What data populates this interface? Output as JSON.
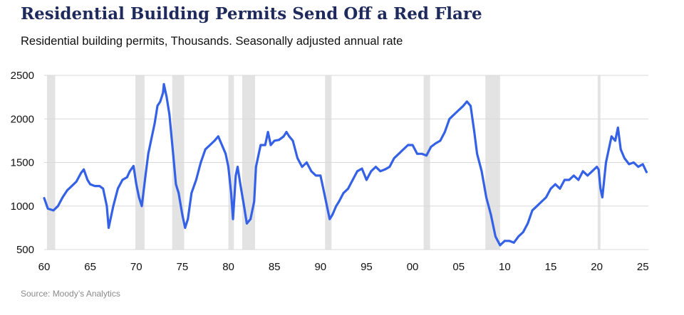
{
  "title": "Residential Building Permits Send Off a Red Flare",
  "subtitle": "Residential building permits, Thousands. Seasonally adjusted annual rate",
  "source": "Source: Moody’s Analytics",
  "colors": {
    "line": "#3461e6",
    "recession": "#e3e3e3",
    "grid": "#d9d9d9",
    "title": "#1f2a5c"
  },
  "chart_data": {
    "type": "line",
    "title": "Residential Building Permits Send Off a Red Flare",
    "xlabel": "",
    "ylabel": "",
    "xlim": [
      1960,
      2025.6
    ],
    "ylim": [
      500,
      2500
    ],
    "grid": true,
    "yticks": [
      500,
      1000,
      1500,
      2000,
      2500
    ],
    "ytick_labels": [
      "500",
      "1000",
      "1500",
      "2000",
      "2500"
    ],
    "xticks": [
      1960,
      1965,
      1970,
      1975,
      1980,
      1985,
      1990,
      1995,
      2000,
      2005,
      2010,
      2015,
      2020,
      2025
    ],
    "xtick_labels": [
      "60",
      "65",
      "70",
      "75",
      "80",
      "85",
      "90",
      "95",
      "00",
      "05",
      "10",
      "15",
      "20",
      "25"
    ],
    "recessions": [
      [
        1960.3,
        1961.2
      ],
      [
        1969.9,
        1970.9
      ],
      [
        1973.9,
        1975.2
      ],
      [
        1980.0,
        1980.6
      ],
      [
        1981.5,
        1982.9
      ],
      [
        1990.5,
        1991.2
      ],
      [
        2001.2,
        2001.9
      ],
      [
        2007.9,
        2009.5
      ],
      [
        2020.1,
        2020.4
      ]
    ],
    "series": [
      {
        "x": [
          1960.0,
          1960.4,
          1961.0,
          1961.5,
          1962.0,
          1962.5,
          1963.0,
          1963.5,
          1964.0,
          1964.3,
          1964.7,
          1965.0,
          1965.5,
          1966.0,
          1966.4,
          1966.8,
          1967.0,
          1967.5,
          1968.0,
          1968.5,
          1969.0,
          1969.3,
          1969.7,
          1970.0,
          1970.3,
          1970.6,
          1971.0,
          1971.3,
          1971.7,
          1972.0,
          1972.3,
          1972.6,
          1972.9,
          1973.0,
          1973.3,
          1973.6,
          1974.0,
          1974.3,
          1974.6,
          1975.0,
          1975.3,
          1975.6,
          1976.0,
          1976.5,
          1977.0,
          1977.5,
          1978.0,
          1978.5,
          1978.9,
          1979.3,
          1979.7,
          1980.0,
          1980.3,
          1980.5,
          1980.8,
          1981.0,
          1981.3,
          1981.7,
          1982.0,
          1982.4,
          1982.8,
          1983.0,
          1983.5,
          1984.0,
          1984.3,
          1984.6,
          1985.0,
          1985.5,
          1986.0,
          1986.3,
          1986.6,
          1987.0,
          1987.5,
          1988.0,
          1988.5,
          1989.0,
          1989.5,
          1990.0,
          1990.5,
          1991.0,
          1991.3,
          1991.7,
          1992.0,
          1992.5,
          1993.0,
          1993.5,
          1994.0,
          1994.5,
          1995.0,
          1995.5,
          1996.0,
          1996.5,
          1997.0,
          1997.5,
          1998.0,
          1998.5,
          1999.0,
          1999.5,
          2000.0,
          2000.5,
          2001.0,
          2001.5,
          2002.0,
          2002.5,
          2003.0,
          2003.5,
          2004.0,
          2004.5,
          2005.0,
          2005.5,
          2005.9,
          2006.3,
          2006.7,
          2007.0,
          2007.5,
          2008.0,
          2008.5,
          2009.0,
          2009.5,
          2010.0,
          2010.5,
          2011.0,
          2011.5,
          2012.0,
          2012.5,
          2013.0,
          2013.5,
          2014.0,
          2014.5,
          2015.0,
          2015.5,
          2016.0,
          2016.5,
          2017.0,
          2017.5,
          2018.0,
          2018.5,
          2019.0,
          2019.5,
          2020.0,
          2020.2,
          2020.4,
          2020.6,
          2021.0,
          2021.3,
          2021.6,
          2022.0,
          2022.3,
          2022.6,
          2023.0,
          2023.5,
          2024.0,
          2024.5,
          2025.0,
          2025.4
        ],
        "values": [
          1090,
          970,
          950,
          1000,
          1100,
          1180,
          1230,
          1280,
          1380,
          1420,
          1300,
          1250,
          1230,
          1230,
          1200,
          1000,
          750,
          1000,
          1200,
          1300,
          1330,
          1400,
          1460,
          1250,
          1100,
          1000,
          1350,
          1600,
          1800,
          1950,
          2150,
          2200,
          2300,
          2400,
          2250,
          2050,
          1600,
          1250,
          1150,
          900,
          750,
          850,
          1150,
          1300,
          1500,
          1650,
          1700,
          1750,
          1800,
          1700,
          1600,
          1450,
          1150,
          850,
          1350,
          1450,
          1250,
          1000,
          800,
          850,
          1050,
          1450,
          1700,
          1700,
          1850,
          1700,
          1750,
          1760,
          1800,
          1850,
          1800,
          1750,
          1550,
          1450,
          1500,
          1400,
          1350,
          1350,
          1100,
          850,
          900,
          1000,
          1050,
          1150,
          1200,
          1300,
          1400,
          1430,
          1300,
          1400,
          1450,
          1400,
          1420,
          1450,
          1550,
          1600,
          1650,
          1700,
          1700,
          1600,
          1600,
          1580,
          1680,
          1720,
          1750,
          1850,
          2000,
          2050,
          2100,
          2150,
          2200,
          2150,
          1850,
          1600,
          1400,
          1100,
          900,
          650,
          550,
          600,
          600,
          580,
          650,
          700,
          800,
          950,
          1000,
          1050,
          1100,
          1200,
          1250,
          1200,
          1300,
          1300,
          1350,
          1300,
          1400,
          1350,
          1400,
          1450,
          1420,
          1200,
          1100,
          1500,
          1650,
          1800,
          1750,
          1900,
          1650,
          1550,
          1480,
          1500,
          1450,
          1480,
          1390
        ]
      }
    ]
  }
}
